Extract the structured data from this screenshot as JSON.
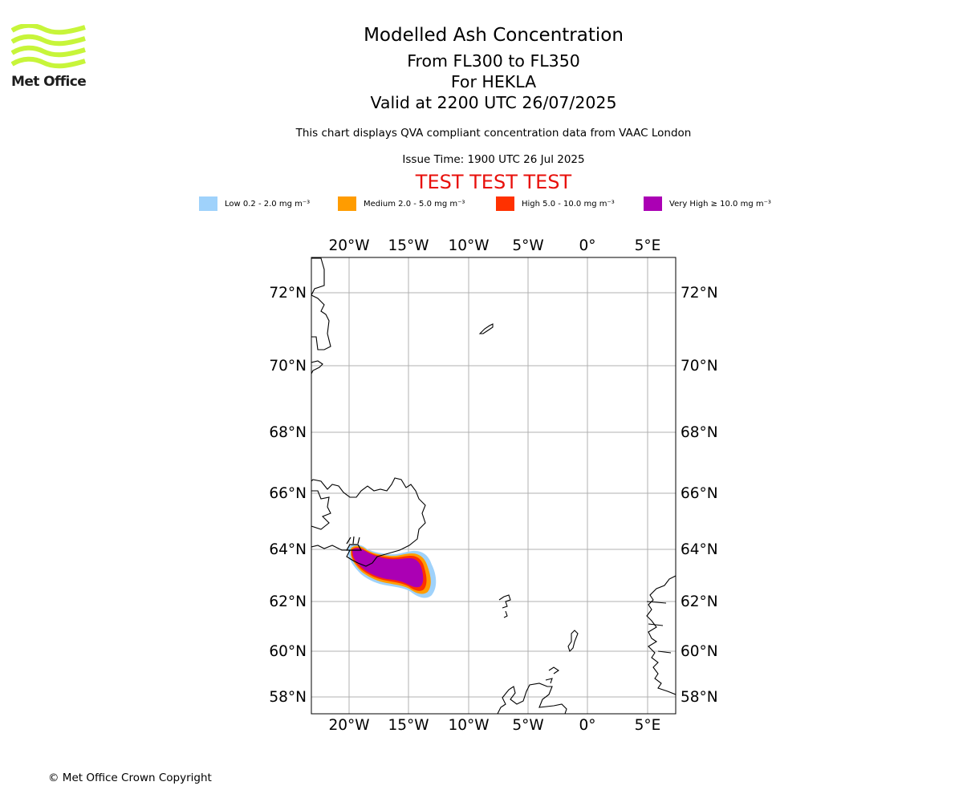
{
  "brand": {
    "name": "Met Office",
    "logo_color": "#c7f53a"
  },
  "titles": {
    "main": "Modelled Ash Concentration",
    "levels": "From FL300 to FL350",
    "volcano": "For HEKLA",
    "valid": "Valid at 2200 UTC 26/07/2025"
  },
  "notes": {
    "qva": "This chart displays QVA compliant concentration data from VAAC London",
    "issue": "Issue Time: 1900 UTC 26 Jul 2025",
    "test_banner": "TEST TEST TEST"
  },
  "legend": [
    {
      "label": "Low 0.2 - 2.0 mg m⁻³",
      "color": "#9fd2fb"
    },
    {
      "label": "Medium 2.0 - 5.0 mg m⁻³",
      "color": "#ff9c00"
    },
    {
      "label": "High 5.0 - 10.0 mg m⁻³",
      "color": "#ff3100"
    },
    {
      "label": "Very High ≥ 10.0 mg m⁻³",
      "color": "#ab00b4"
    }
  ],
  "map": {
    "lon_labels": [
      "20°W",
      "15°W",
      "10°W",
      "5°W",
      "0°",
      "5°E"
    ],
    "lat_labels": [
      "72°N",
      "70°N",
      "68°N",
      "66°N",
      "64°N",
      "62°N",
      "60°N",
      "58°N"
    ],
    "grid_color": "#b0b0b0",
    "coast_color": "#000000"
  },
  "footer": {
    "copyright": "© Met Office Crown Copyright"
  }
}
